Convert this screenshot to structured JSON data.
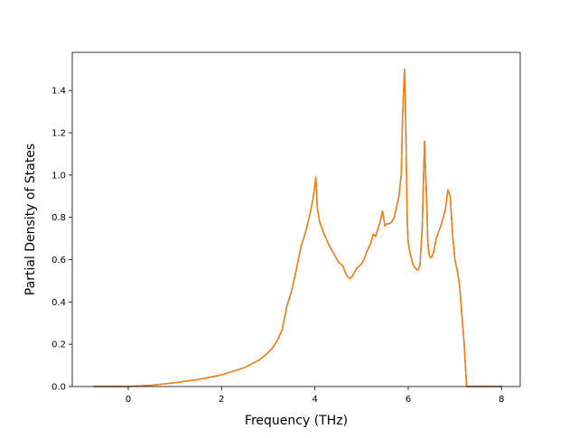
{
  "chart_data": {
    "type": "line",
    "title": "",
    "xlabel": "Frequency (THz)",
    "ylabel": "Partial Density of States",
    "xlim": [
      -1.2,
      8.4
    ],
    "ylim": [
      0.0,
      1.58
    ],
    "xticks": [
      0,
      2,
      4,
      6,
      8
    ],
    "xtick_labels": [
      "0",
      "2",
      "4",
      "6",
      "8"
    ],
    "yticks": [
      0.0,
      0.2,
      0.4,
      0.6,
      0.8,
      1.0,
      1.2,
      1.4
    ],
    "ytick_labels": [
      "0.0",
      "0.2",
      "0.4",
      "0.6",
      "0.8",
      "1.0",
      "1.2",
      "1.4"
    ],
    "grid": false,
    "legend": "none",
    "series": [
      {
        "color": "#1f77b4",
        "x": [
          -0.75,
          0,
          0.5,
          1,
          1.5,
          2,
          2.5,
          2.8,
          3,
          3.1,
          3.2,
          3.3,
          3.4,
          3.5,
          3.6,
          3.7,
          3.8,
          3.9,
          3.97,
          4.02,
          4.05,
          4.1,
          4.2,
          4.3,
          4.4,
          4.5,
          4.6,
          4.65,
          4.7,
          4.75,
          4.8,
          4.85,
          4.9,
          4.95,
          5.0,
          5.05,
          5.1,
          5.2,
          5.25,
          5.3,
          5.4,
          5.45,
          5.5,
          5.55,
          5.6,
          5.65,
          5.7,
          5.75,
          5.8,
          5.85,
          5.88,
          5.92,
          5.94,
          5.96,
          5.98,
          6.0,
          6.05,
          6.1,
          6.15,
          6.2,
          6.25,
          6.3,
          6.35,
          6.4,
          6.42,
          6.45,
          6.48,
          6.5,
          6.55,
          6.6,
          6.65,
          6.7,
          6.75,
          6.8,
          6.85,
          6.9,
          6.95,
          6.98,
          7.0,
          7.05,
          7.1,
          7.2,
          7.25,
          7.3,
          7.5,
          8.0
        ],
        "y": [
          0,
          0,
          0.006,
          0.018,
          0.033,
          0.055,
          0.09,
          0.125,
          0.16,
          0.185,
          0.22,
          0.27,
          0.38,
          0.45,
          0.55,
          0.66,
          0.73,
          0.82,
          0.9,
          0.99,
          0.85,
          0.78,
          0.72,
          0.67,
          0.63,
          0.59,
          0.57,
          0.54,
          0.52,
          0.51,
          0.52,
          0.54,
          0.56,
          0.57,
          0.58,
          0.6,
          0.63,
          0.68,
          0.72,
          0.71,
          0.78,
          0.83,
          0.76,
          0.77,
          0.77,
          0.78,
          0.8,
          0.85,
          0.9,
          1.0,
          1.28,
          1.5,
          1.35,
          1.05,
          0.78,
          0.68,
          0.62,
          0.58,
          0.56,
          0.55,
          0.57,
          0.75,
          1.16,
          0.85,
          0.68,
          0.62,
          0.61,
          0.61,
          0.64,
          0.7,
          0.73,
          0.76,
          0.8,
          0.84,
          0.93,
          0.9,
          0.72,
          0.65,
          0.6,
          0.55,
          0.48,
          0.2,
          0,
          0,
          0,
          0
        ]
      },
      {
        "color": "#ff7f0e",
        "x": [
          -0.75,
          0,
          0.5,
          1,
          1.5,
          2,
          2.5,
          2.8,
          3,
          3.1,
          3.2,
          3.3,
          3.4,
          3.5,
          3.6,
          3.7,
          3.8,
          3.9,
          3.97,
          4.02,
          4.05,
          4.1,
          4.2,
          4.3,
          4.4,
          4.5,
          4.6,
          4.65,
          4.7,
          4.75,
          4.8,
          4.85,
          4.9,
          4.95,
          5.0,
          5.05,
          5.1,
          5.2,
          5.25,
          5.3,
          5.4,
          5.45,
          5.5,
          5.55,
          5.6,
          5.65,
          5.7,
          5.75,
          5.8,
          5.85,
          5.88,
          5.92,
          5.94,
          5.96,
          5.98,
          6.0,
          6.05,
          6.1,
          6.15,
          6.2,
          6.25,
          6.3,
          6.35,
          6.4,
          6.42,
          6.45,
          6.48,
          6.5,
          6.55,
          6.6,
          6.65,
          6.7,
          6.75,
          6.8,
          6.85,
          6.9,
          6.95,
          6.98,
          7.0,
          7.05,
          7.1,
          7.2,
          7.25,
          7.3,
          7.5,
          8.0
        ],
        "y": [
          0,
          0,
          0.006,
          0.018,
          0.033,
          0.055,
          0.09,
          0.125,
          0.16,
          0.185,
          0.22,
          0.27,
          0.38,
          0.45,
          0.55,
          0.66,
          0.73,
          0.82,
          0.9,
          0.99,
          0.85,
          0.78,
          0.72,
          0.67,
          0.63,
          0.59,
          0.57,
          0.54,
          0.52,
          0.51,
          0.52,
          0.54,
          0.56,
          0.57,
          0.58,
          0.6,
          0.63,
          0.68,
          0.72,
          0.71,
          0.78,
          0.83,
          0.76,
          0.77,
          0.77,
          0.78,
          0.8,
          0.85,
          0.9,
          1.0,
          1.28,
          1.5,
          1.35,
          1.05,
          0.78,
          0.68,
          0.62,
          0.58,
          0.56,
          0.55,
          0.57,
          0.75,
          1.16,
          0.85,
          0.68,
          0.62,
          0.61,
          0.61,
          0.64,
          0.7,
          0.73,
          0.76,
          0.8,
          0.84,
          0.93,
          0.9,
          0.72,
          0.65,
          0.6,
          0.55,
          0.48,
          0.2,
          0,
          0,
          0,
          0
        ]
      }
    ]
  }
}
